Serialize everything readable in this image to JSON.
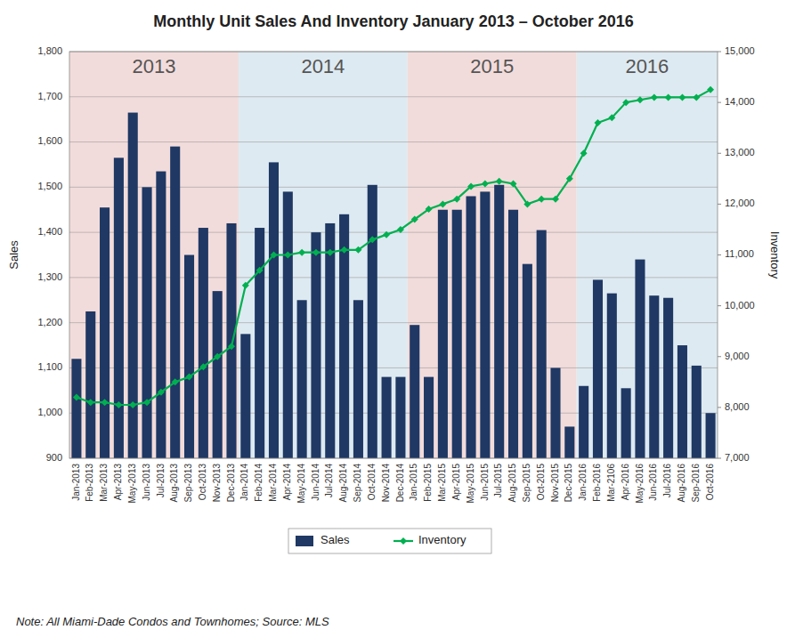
{
  "chart_data": {
    "type": "bar",
    "title": "Monthly Unit Sales And Inventory January 2013 – October 2016",
    "note": "Note: All Miami-Dade Condos and Townhomes; Source: MLS",
    "categories": [
      "Jan-2013",
      "Feb-2013",
      "Mar-2013",
      "Apr-2013",
      "May-2013",
      "Jun-2013",
      "Jul-2013",
      "Aug-2013",
      "Sep-2013",
      "Oct-2013",
      "Nov-2013",
      "Dec-2013",
      "Jan-2014",
      "Feb-2014",
      "Mar-2014",
      "Apr-2014",
      "May-2014",
      "Jun-2014",
      "Jul-2014",
      "Aug-2014",
      "Sep-2014",
      "Oct-2014",
      "Nov-2014",
      "Dec-2014",
      "Jan-2015",
      "Feb-2015",
      "Mar-2015",
      "Apr-2015",
      "May-2015",
      "Jun-2015",
      "Jul-2015",
      "Aug-2015",
      "Sep-2015",
      "Oct-2015",
      "Nov-2015",
      "Dec-2015",
      "Jan-2016",
      "Feb-2016",
      "Mar-2106",
      "Apr-2016",
      "May-2016",
      "Jun-2016",
      "Jul-2016",
      "Aug-2016",
      "Sep-2016",
      "Oct-2016"
    ],
    "series": [
      {
        "name": "Sales",
        "type": "bar",
        "color": "#1F3864",
        "values": [
          1120,
          1225,
          1455,
          1565,
          1665,
          1500,
          1535,
          1590,
          1350,
          1410,
          1270,
          1420,
          1175,
          1410,
          1555,
          1490,
          1250,
          1400,
          1420,
          1440,
          1250,
          1505,
          1080,
          1080,
          1195,
          1080,
          1450,
          1450,
          1480,
          1490,
          1505,
          1450,
          1330,
          1405,
          1100,
          970,
          1060,
          1295,
          1265,
          1055,
          1340,
          1260,
          1255,
          1150,
          1105,
          1000
        ]
      },
      {
        "name": "Inventory",
        "type": "line",
        "axis": "y2",
        "color": "#00B050",
        "marker": "diamond",
        "values": [
          8200,
          8100,
          8100,
          8050,
          8050,
          8100,
          8300,
          8500,
          8600,
          8800,
          9000,
          9200,
          10400,
          10700,
          11000,
          11000,
          11050,
          11050,
          11050,
          11100,
          11100,
          11300,
          11400,
          11500,
          11700,
          11900,
          12000,
          12100,
          12350,
          12400,
          12450,
          12400,
          12000,
          12100,
          12100,
          12500,
          13000,
          13600,
          13700,
          14000,
          14050,
          14100,
          14100,
          14100,
          14100,
          14250
        ]
      }
    ],
    "annotations": [
      {
        "text": "2013",
        "from": "Jan-2013",
        "to": "Dec-2013",
        "color": "#F2DCDB"
      },
      {
        "text": "2014",
        "from": "Jan-2014",
        "to": "Dec-2014",
        "color": "#DEEAF1"
      },
      {
        "text": "2015",
        "from": "Jan-2015",
        "to": "Dec-2015",
        "color": "#F2DCDB"
      },
      {
        "text": "2016",
        "from": "Jan-2016",
        "to": "Oct-2016",
        "color": "#DEEAF1"
      }
    ],
    "ylabel": "Sales",
    "y2label": "Inventory",
    "ylim": [
      900,
      1800
    ],
    "yticks": [
      900,
      {
        "value": 1000,
        "label": "1,000"
      },
      {
        "value": 1100,
        "label": "1,100"
      },
      {
        "value": 1200,
        "label": "1,200"
      },
      {
        "value": 1300,
        "label": "1,300"
      },
      {
        "value": 1400,
        "label": "1,400"
      },
      {
        "value": 1500,
        "label": "1,500"
      },
      {
        "value": 1600,
        "label": "1,600"
      },
      {
        "value": 1700,
        "label": "1,700"
      },
      {
        "value": 1800,
        "label": "1,800"
      }
    ],
    "y2lim": [
      7000,
      15000
    ],
    "y2ticks": [
      {
        "value": 7000,
        "label": "7,000"
      },
      {
        "value": 8000,
        "label": "8,000"
      },
      {
        "value": 9000,
        "label": "9,000"
      },
      {
        "value": 10000,
        "label": "10,000"
      },
      {
        "value": 11000,
        "label": "11,000"
      },
      {
        "value": 12000,
        "label": "12,000"
      },
      {
        "value": 13000,
        "label": "13,000"
      },
      {
        "value": 14000,
        "label": "14,000"
      },
      {
        "value": 15000,
        "label": "15,000"
      }
    ],
    "grid": true,
    "legend": "bottom"
  }
}
